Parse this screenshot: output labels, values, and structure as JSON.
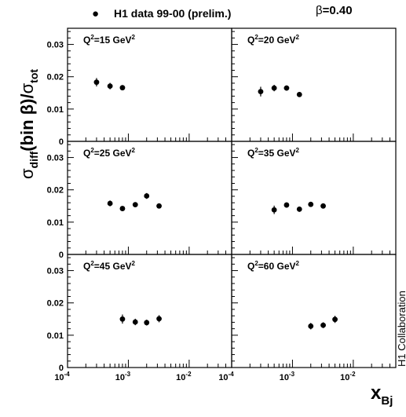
{
  "legend": {
    "marker": "●",
    "label": "H1 data 99-00 (prelim.)"
  },
  "beta_label": {
    "symbol": "β",
    "value": "=0.40"
  },
  "side_label": "H1 Collaboration",
  "y_axis_label": {
    "sigma1": "σ",
    "sub1": "diff",
    "middle": "(bin β)/",
    "sigma2": "σ",
    "sub2": "tot"
  },
  "x_axis_label": {
    "main": "x",
    "sub": "Bj"
  },
  "y_ticks": [
    "0",
    "0.01",
    "0.02",
    "0.03"
  ],
  "x_ticks": [
    {
      "base": "10",
      "exp": "-4"
    },
    {
      "base": "10",
      "exp": "-3"
    },
    {
      "base": "10",
      "exp": "-2"
    }
  ],
  "colors": {
    "ink": "#000000",
    "background": "#ffffff"
  },
  "chart_data": {
    "type": "scatter",
    "x_scale": "log",
    "xlim": [
      0.0001,
      0.05
    ],
    "ylim": [
      0,
      0.035
    ],
    "panels": [
      {
        "q2": "15",
        "label_prefix": "Q",
        "label_sup": "2",
        "label_mid": "=15 GeV",
        "label_sup2": "2",
        "points": [
          {
            "x": 0.0003,
            "y": 0.0183,
            "err": 0.0013
          },
          {
            "x": 0.0005,
            "y": 0.0171,
            "err": 0.001
          },
          {
            "x": 0.0008,
            "y": 0.0166,
            "err": 0.0008
          }
        ]
      },
      {
        "q2": "20",
        "label_prefix": "Q",
        "label_sup": "2",
        "label_mid": "=20 GeV",
        "label_sup2": "2",
        "points": [
          {
            "x": 0.0003,
            "y": 0.0154,
            "err": 0.0015
          },
          {
            "x": 0.0005,
            "y": 0.0165,
            "err": 0.001
          },
          {
            "x": 0.0008,
            "y": 0.0165,
            "err": 0.0008
          },
          {
            "x": 0.0013,
            "y": 0.0145,
            "err": 0.0006
          }
        ]
      },
      {
        "q2": "25",
        "label_prefix": "Q",
        "label_sup": "2",
        "label_mid": "=25 GeV",
        "label_sup2": "2",
        "points": [
          {
            "x": 0.0005,
            "y": 0.0158,
            "err": 0.0009
          },
          {
            "x": 0.0008,
            "y": 0.0142,
            "err": 0.0006
          },
          {
            "x": 0.0013,
            "y": 0.0154,
            "err": 0.0006
          },
          {
            "x": 0.002,
            "y": 0.0181,
            "err": 0.0009
          },
          {
            "x": 0.0032,
            "y": 0.015,
            "err": 0.0007
          }
        ]
      },
      {
        "q2": "35",
        "label_prefix": "Q",
        "label_sup": "2",
        "label_mid": "=35 GeV",
        "label_sup2": "2",
        "points": [
          {
            "x": 0.0005,
            "y": 0.0138,
            "err": 0.0013
          },
          {
            "x": 0.0008,
            "y": 0.0153,
            "err": 0.0008
          },
          {
            "x": 0.0013,
            "y": 0.014,
            "err": 0.0008
          },
          {
            "x": 0.002,
            "y": 0.0155,
            "err": 0.0008
          },
          {
            "x": 0.0032,
            "y": 0.015,
            "err": 0.0008
          }
        ]
      },
      {
        "q2": "45",
        "label_prefix": "Q",
        "label_sup": "2",
        "label_mid": "=45 GeV",
        "label_sup2": "2",
        "points": [
          {
            "x": 0.0008,
            "y": 0.015,
            "err": 0.0014
          },
          {
            "x": 0.0013,
            "y": 0.0141,
            "err": 0.001
          },
          {
            "x": 0.002,
            "y": 0.0139,
            "err": 0.0009
          },
          {
            "x": 0.0032,
            "y": 0.0151,
            "err": 0.0011
          }
        ]
      },
      {
        "q2": "60",
        "label_prefix": "Q",
        "label_sup": "2",
        "label_mid": "=60 GeV",
        "label_sup2": "2",
        "points": [
          {
            "x": 0.002,
            "y": 0.0128,
            "err": 0.001
          },
          {
            "x": 0.0032,
            "y": 0.0131,
            "err": 0.0009
          },
          {
            "x": 0.005,
            "y": 0.0149,
            "err": 0.0011
          }
        ]
      }
    ]
  }
}
